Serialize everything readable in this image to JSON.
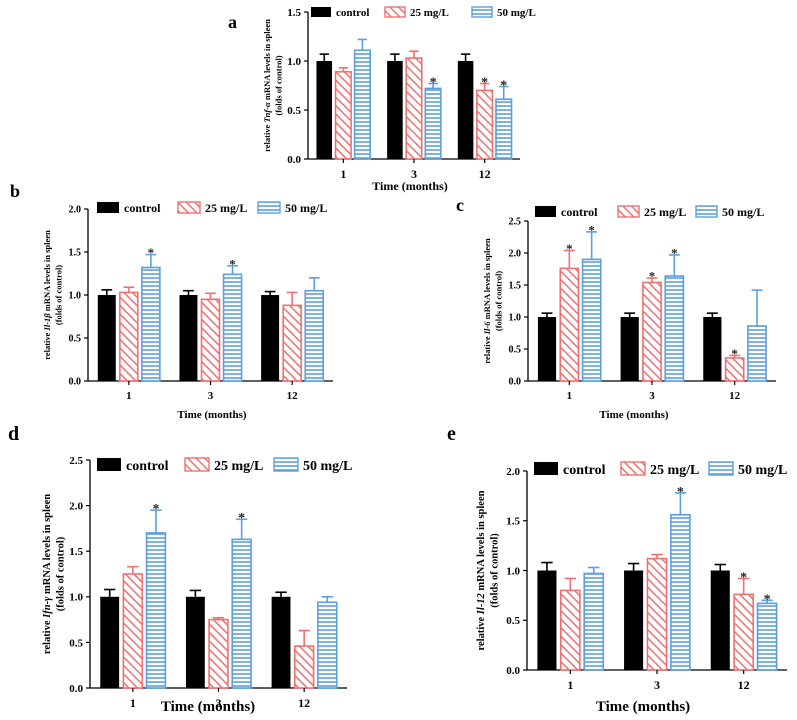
{
  "figure": {
    "legend": [
      "control",
      "25 mg/L",
      "50 mg/L"
    ],
    "colors": {
      "control": "#000000",
      "dose25": "#f07070",
      "dose50": "#5aa0e0",
      "axis": "#000000"
    }
  },
  "chart_data": [
    {
      "panel": "a",
      "type": "bar",
      "categories": [
        "1",
        "3",
        "12"
      ],
      "xlabel": "Time (months)",
      "ylabel_prefix": "relative ",
      "ylabel_gene": "Tnf-α",
      "ylabel_suffix": " mRNA levels in spleen",
      "ylabel_line2": "(folds of control)",
      "ylim": [
        0,
        1.5
      ],
      "yticks": [
        "0.0",
        "0.5",
        "1.0",
        "1.5"
      ],
      "series": [
        {
          "name": "control",
          "values": [
            1.0,
            1.0,
            1.0
          ],
          "errors": [
            0.07,
            0.07,
            0.07
          ],
          "significant": [
            false,
            false,
            false
          ]
        },
        {
          "name": "25 mg/L",
          "values": [
            0.89,
            1.03,
            0.7
          ],
          "errors": [
            0.04,
            0.07,
            0.07
          ],
          "significant": [
            false,
            false,
            true
          ]
        },
        {
          "name": "50 mg/L",
          "values": [
            1.11,
            0.72,
            0.61
          ],
          "errors": [
            0.11,
            0.05,
            0.13
          ],
          "significant": [
            false,
            true,
            true
          ]
        }
      ]
    },
    {
      "panel": "b",
      "type": "bar",
      "categories": [
        "1",
        "3",
        "12"
      ],
      "xlabel": "Time (months)",
      "ylabel_prefix": "relative ",
      "ylabel_gene": "Il-1β",
      "ylabel_suffix": " mRNA levels in spleen",
      "ylabel_line2": "(folds of control)",
      "ylim": [
        0,
        2.0
      ],
      "yticks": [
        "0.0",
        "0.5",
        "1.0",
        "1.5",
        "2.0"
      ],
      "series": [
        {
          "name": "control",
          "values": [
            1.0,
            1.0,
            1.0
          ],
          "errors": [
            0.06,
            0.05,
            0.04
          ],
          "significant": [
            false,
            false,
            false
          ]
        },
        {
          "name": "25 mg/L",
          "values": [
            1.03,
            0.95,
            0.88
          ],
          "errors": [
            0.06,
            0.07,
            0.15
          ],
          "significant": [
            false,
            false,
            false
          ]
        },
        {
          "name": "50 mg/L",
          "values": [
            1.32,
            1.24,
            1.05
          ],
          "errors": [
            0.15,
            0.1,
            0.15
          ],
          "significant": [
            true,
            true,
            false
          ]
        }
      ]
    },
    {
      "panel": "c",
      "type": "bar",
      "categories": [
        "1",
        "3",
        "12"
      ],
      "xlabel": "Time (months)",
      "ylabel_prefix": "relative ",
      "ylabel_gene": "Il-6",
      "ylabel_suffix": " mRNA levels in spleen",
      "ylabel_line2": "(folds of control)",
      "ylim": [
        0,
        2.5
      ],
      "yticks": [
        "0.0",
        "0.5",
        "1.0",
        "1.5",
        "2.0",
        "2.5"
      ],
      "series": [
        {
          "name": "control",
          "values": [
            1.0,
            1.0,
            1.0
          ],
          "errors": [
            0.06,
            0.06,
            0.06
          ],
          "significant": [
            false,
            false,
            false
          ]
        },
        {
          "name": "25 mg/L",
          "values": [
            1.76,
            1.54,
            0.36
          ],
          "errors": [
            0.28,
            0.07,
            0.04
          ],
          "significant": [
            true,
            true,
            true
          ]
        },
        {
          "name": "50 mg/L",
          "values": [
            1.9,
            1.64,
            0.86
          ],
          "errors": [
            0.43,
            0.33,
            0.56
          ],
          "significant": [
            true,
            true,
            false
          ]
        }
      ]
    },
    {
      "panel": "d",
      "type": "bar",
      "categories": [
        "1",
        "3",
        "12"
      ],
      "xlabel": "Time (months)",
      "ylabel_prefix": "relative ",
      "ylabel_gene": "Ifn-γ",
      "ylabel_suffix": " mRNA levels in spleen",
      "ylabel_line2": "(folds of control)",
      "ylim": [
        0,
        2.5
      ],
      "yticks": [
        "0.0",
        "0.5",
        "1.0",
        "1.5",
        "2.0",
        "2.5"
      ],
      "series": [
        {
          "name": "control",
          "values": [
            1.0,
            1.0,
            1.0
          ],
          "errors": [
            0.08,
            0.07,
            0.05
          ],
          "significant": [
            false,
            false,
            false
          ]
        },
        {
          "name": "25 mg/L",
          "values": [
            1.25,
            0.75,
            0.46
          ],
          "errors": [
            0.08,
            0.02,
            0.17
          ],
          "significant": [
            false,
            false,
            false
          ]
        },
        {
          "name": "50 mg/L",
          "values": [
            1.7,
            1.63,
            0.94
          ],
          "errors": [
            0.25,
            0.22,
            0.06
          ],
          "significant": [
            true,
            true,
            false
          ]
        }
      ]
    },
    {
      "panel": "e",
      "type": "bar",
      "categories": [
        "1",
        "3",
        "12"
      ],
      "xlabel": "Time (months)",
      "ylabel_prefix": "relative ",
      "ylabel_gene": "Il-12",
      "ylabel_suffix": " mRNA levels in spleen",
      "ylabel_line2": "(folds of control)",
      "ylim": [
        0,
        2.0
      ],
      "yticks": [
        "0.0",
        "0.5",
        "1.0",
        "1.5",
        "2.0"
      ],
      "series": [
        {
          "name": "control",
          "values": [
            1.0,
            1.0,
            1.0
          ],
          "errors": [
            0.08,
            0.07,
            0.06
          ],
          "significant": [
            false,
            false,
            false
          ]
        },
        {
          "name": "25 mg/L",
          "values": [
            0.8,
            1.12,
            0.76
          ],
          "errors": [
            0.12,
            0.04,
            0.16
          ],
          "significant": [
            false,
            false,
            true
          ]
        },
        {
          "name": "50 mg/L",
          "values": [
            0.97,
            1.56,
            0.67
          ],
          "errors": [
            0.06,
            0.22,
            0.03
          ],
          "significant": [
            false,
            true,
            true
          ]
        }
      ]
    }
  ]
}
